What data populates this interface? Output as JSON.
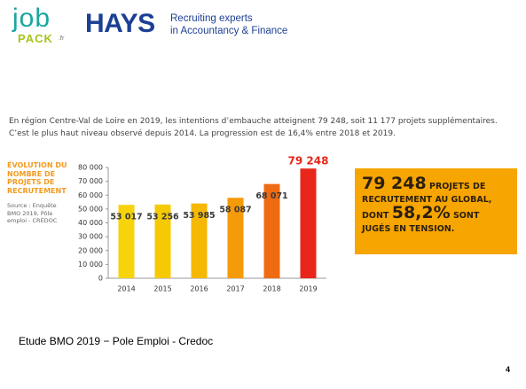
{
  "logos": {
    "jobpack": {
      "job": "job",
      "pack": "PACK",
      "fr": ".fr"
    },
    "hays": {
      "name": "HAYS",
      "tagline1": "Recruiting experts",
      "tagline2": "in Accountancy & Finance"
    }
  },
  "intro": "En région Centre-Val de Loire en 2019, les intentions d’embauche atteignent 79 248, soit 11 177 projets supplémentaires. C’est le plus haut niveau observé depuis 2014. La progression est de 16,4% entre 2018 et 2019.",
  "chart_data": {
    "type": "bar",
    "title": "ÉVOLUTION DU NOMBRE DE PROJETS DE RECRUTEMENT",
    "source": "Source : Enquête BMO 2019, Pôle emploi - CRÉDOC",
    "categories": [
      "2014",
      "2015",
      "2016",
      "2017",
      "2018",
      "2019"
    ],
    "values": [
      53017,
      53256,
      53985,
      58087,
      68071,
      79248
    ],
    "value_labels": [
      "53 017",
      "53 256",
      "53 985",
      "58 087",
      "68 071",
      "79 248"
    ],
    "colors": [
      "#f6d30a",
      "#f6c905",
      "#f6b803",
      "#f59a08",
      "#ef6b12",
      "#e8261a"
    ],
    "ylim": [
      0,
      80000
    ],
    "yticks": [
      0,
      {
        "value": 10000,
        "label": "10 000"
      },
      {
        "value": 20000,
        "label": "20 000"
      },
      {
        "value": 30000,
        "label": "30 000"
      },
      {
        "value": 40000,
        "label": "40 000"
      },
      {
        "value": 50000,
        "label": "50 000"
      },
      {
        "value": 60000,
        "label": "60 000"
      },
      {
        "value": 70000,
        "label": "70 000"
      },
      {
        "value": 80000,
        "label": "80 000"
      }
    ]
  },
  "highlight": {
    "value": "79 248",
    "text1": "PROJETS DE RECRUTEMENT AU GLOBAL, DONT",
    "percent": "58,2%",
    "text2": "SONT JUGÉS EN TENSION."
  },
  "footer": "Etude BMO 2019 − Pole Emploi - Credoc",
  "page_number": "4"
}
